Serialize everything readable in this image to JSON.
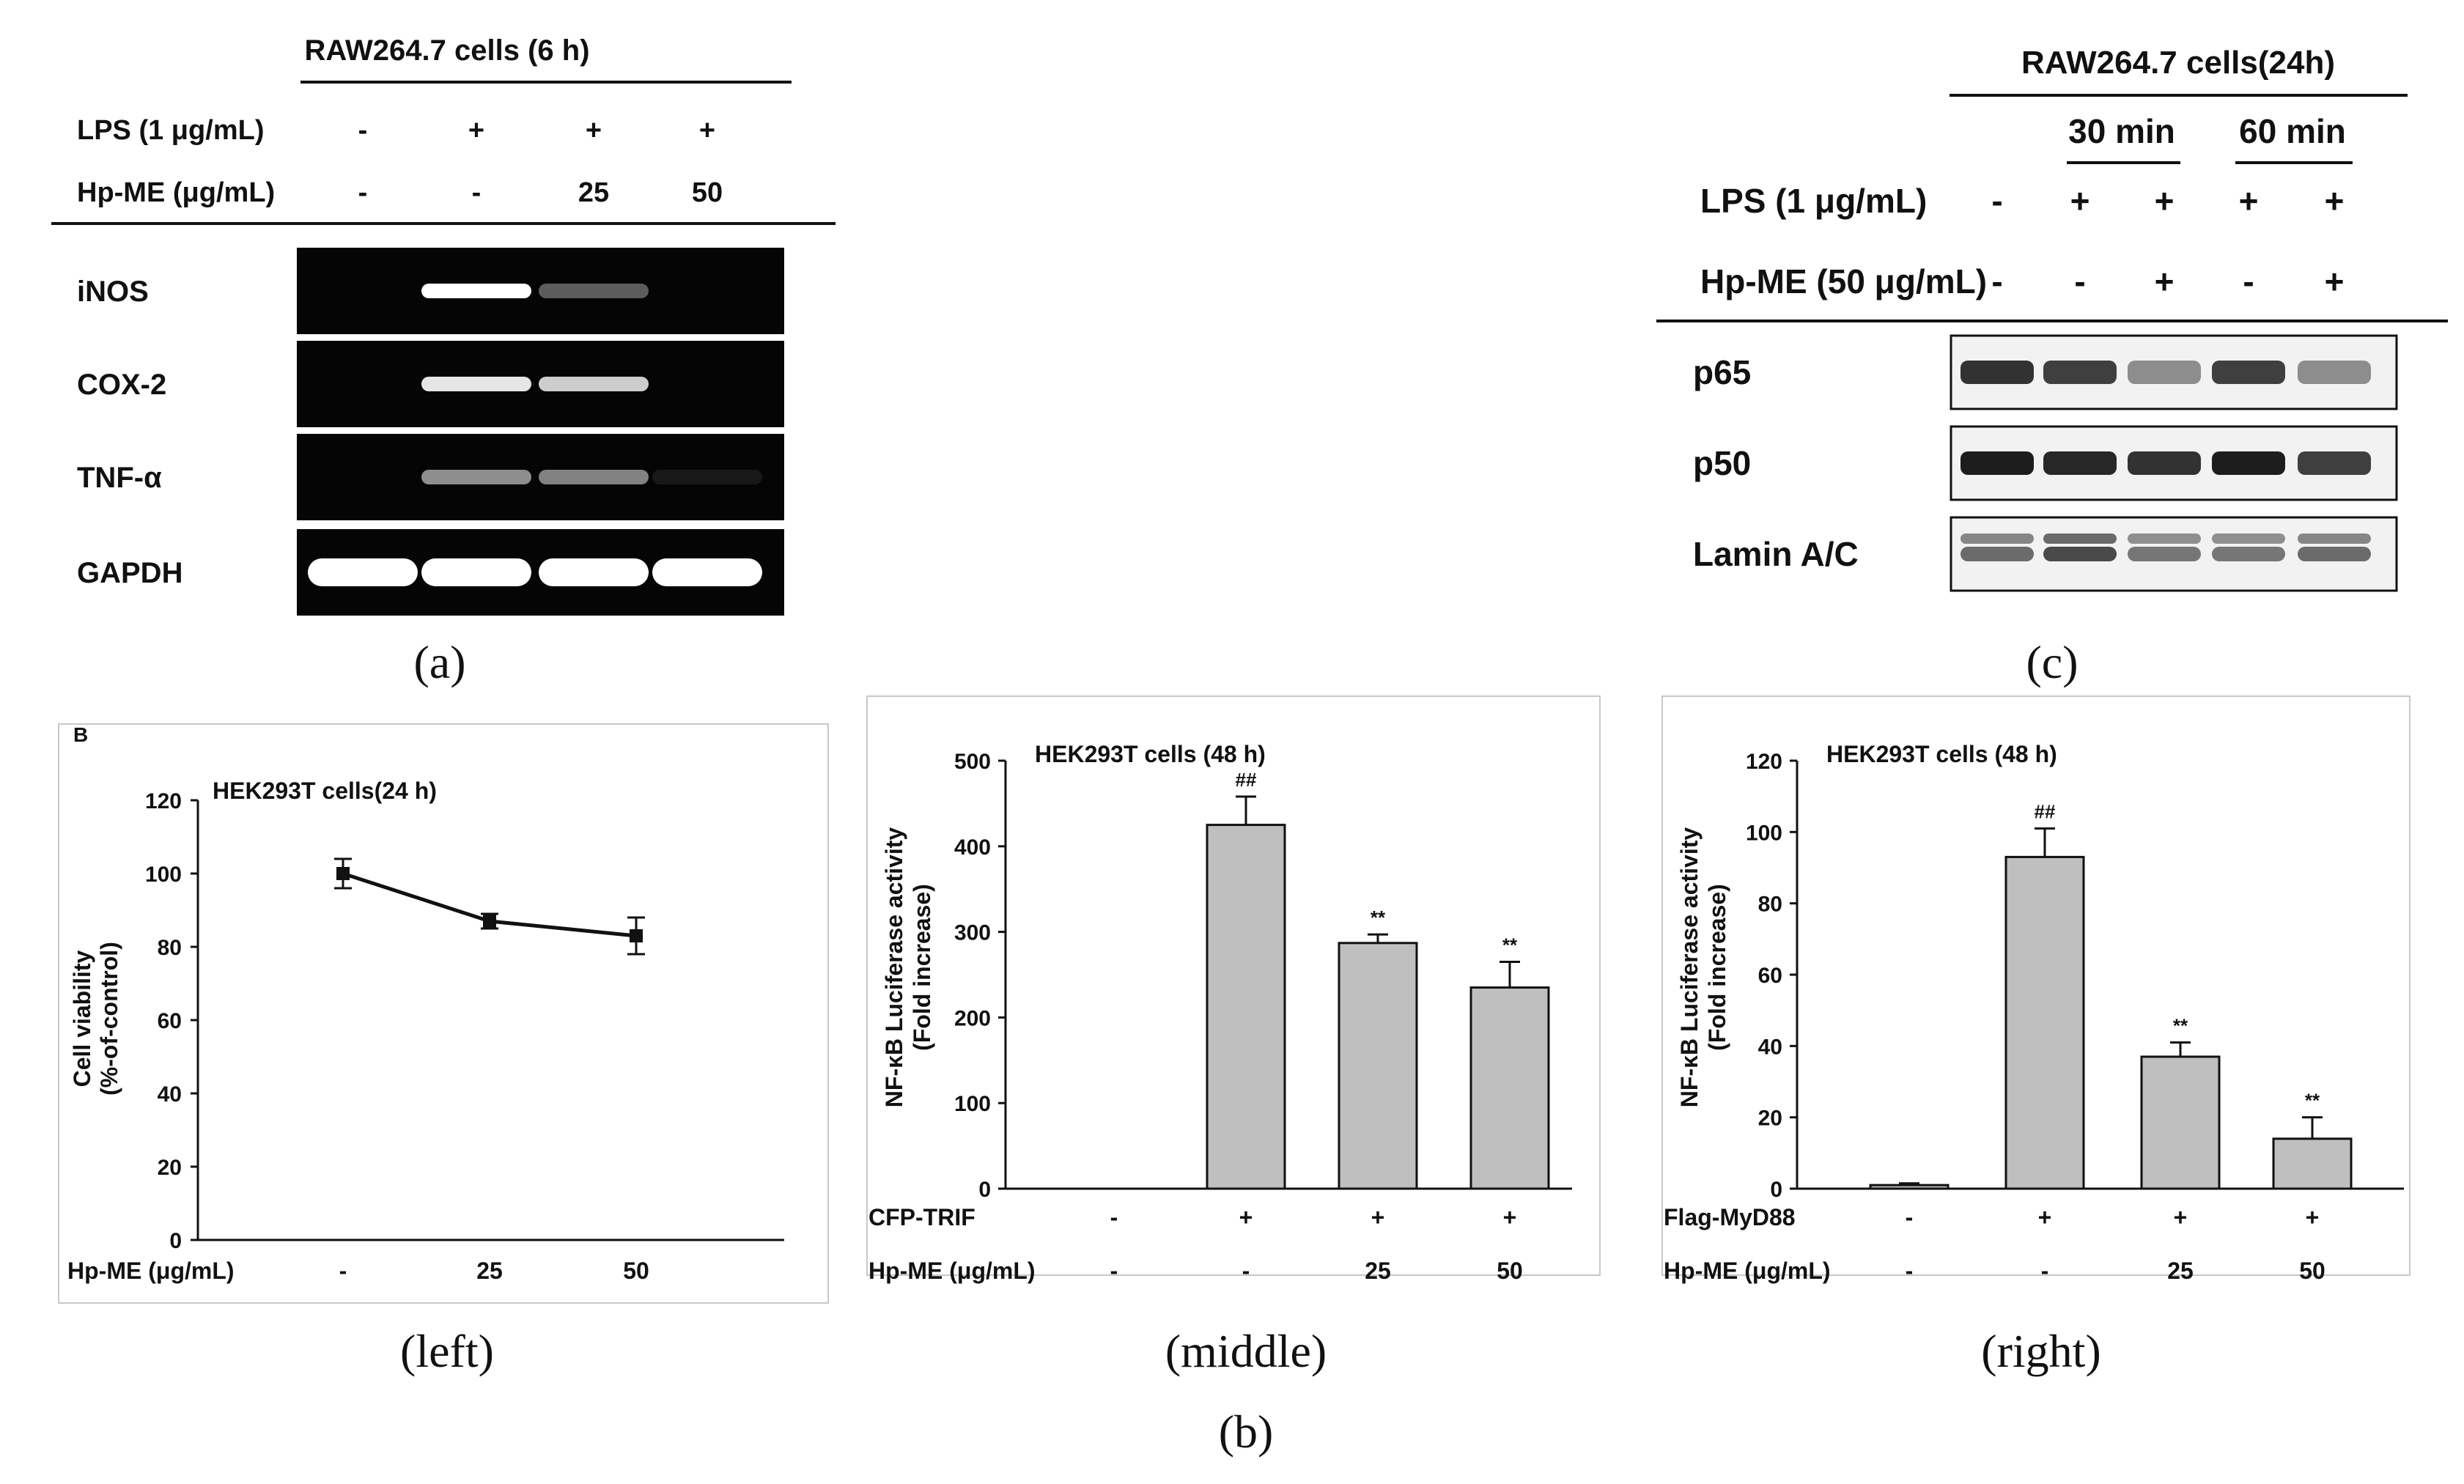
{
  "panel_a": {
    "title": "RAW264.7 cells (6 h)",
    "rows": [
      {
        "label": "LPS (1 μg/mL)",
        "values": [
          "-",
          "+",
          "+",
          "+"
        ]
      },
      {
        "label": "Hp-ME (μg/mL)",
        "values": [
          "-",
          "-",
          "25",
          "50"
        ]
      }
    ],
    "blots": [
      {
        "label": "iNOS",
        "intensities": [
          0,
          1.0,
          0.35,
          0
        ]
      },
      {
        "label": "COX-2",
        "intensities": [
          0,
          0.9,
          0.8,
          0
        ]
      },
      {
        "label": "TNF-α",
        "intensities": [
          0,
          0.55,
          0.5,
          0.08
        ]
      },
      {
        "label": "GAPDH",
        "intensities": [
          1.0,
          1.0,
          1.0,
          1.0
        ]
      }
    ],
    "caption": "(a)"
  },
  "panel_c": {
    "title": "RAW264.7 cells(24h)",
    "time_groups": [
      "30 min",
      "60 min"
    ],
    "rows": [
      {
        "label": "LPS (1 μg/mL)",
        "values": [
          "-",
          "+",
          "+",
          "+",
          "+"
        ]
      },
      {
        "label": "Hp-ME (50 μg/mL)",
        "values": [
          "-",
          "-",
          "+",
          "-",
          "+"
        ]
      }
    ],
    "blots": [
      {
        "label": "p65",
        "intensities": [
          0.85,
          0.8,
          0.45,
          0.8,
          0.45
        ]
      },
      {
        "label": "p50",
        "intensities": [
          0.95,
          0.9,
          0.85,
          0.95,
          0.8
        ]
      },
      {
        "label": "Lamin A/C",
        "intensities": [
          0.6,
          0.75,
          0.55,
          0.55,
          0.6
        ]
      }
    ],
    "caption": "(c)"
  },
  "panel_b_left": {
    "chart_data": {
      "type": "line",
      "tag": "B",
      "annotation": "HEK293T cells(24 h)",
      "ylabel": "Cell viability",
      "ylabel2": "(%-of-control)",
      "ylim": [
        0,
        120
      ],
      "yticks": [
        "0",
        "20",
        "40",
        "60",
        "80",
        "100",
        "120"
      ],
      "categories": [
        "-",
        "25",
        "50"
      ],
      "row_label": "Hp-ME (μg/mL)",
      "values": [
        100,
        87,
        83
      ],
      "errors": [
        4,
        2,
        5
      ]
    },
    "caption": "(left)"
  },
  "panel_b_middle": {
    "chart_data": {
      "type": "bar",
      "annotation": "HEK293T cells (48 h)",
      "ylabel": "NF-κB Luciferase activity",
      "ylabel2": "(Fold increase)",
      "ylim": [
        0,
        500
      ],
      "yticks": [
        "0",
        "100",
        "200",
        "300",
        "400",
        "500"
      ],
      "values": [
        0,
        425,
        287,
        235
      ],
      "errors": [
        0,
        33,
        10,
        30
      ],
      "marks": [
        "",
        "##",
        "**",
        "**"
      ],
      "row1_label": "CFP-TRIF",
      "row1_values": [
        "-",
        "+",
        "+",
        "+"
      ],
      "row2_label": "Hp-ME (μg/mL)",
      "row2_values": [
        "-",
        "-",
        "25",
        "50"
      ]
    },
    "caption": "(middle)"
  },
  "panel_b_right": {
    "chart_data": {
      "type": "bar",
      "annotation": "HEK293T cells (48 h)",
      "ylabel": "NF-κB Luciferase activity",
      "ylabel2": "(Fold increase)",
      "ylim": [
        0,
        120
      ],
      "yticks": [
        "0",
        "20",
        "40",
        "60",
        "80",
        "100",
        "120"
      ],
      "values": [
        1,
        93,
        37,
        14
      ],
      "errors": [
        0.5,
        8,
        4,
        6
      ],
      "marks": [
        "",
        "##",
        "**",
        "**"
      ],
      "row1_label": "Flag-MyD88",
      "row1_values": [
        "-",
        "+",
        "+",
        "+"
      ],
      "row2_label": "Hp-ME (μg/mL)",
      "row2_values": [
        "-",
        "-",
        "25",
        "50"
      ]
    },
    "caption": "(right)"
  },
  "caption_b": "(b)"
}
